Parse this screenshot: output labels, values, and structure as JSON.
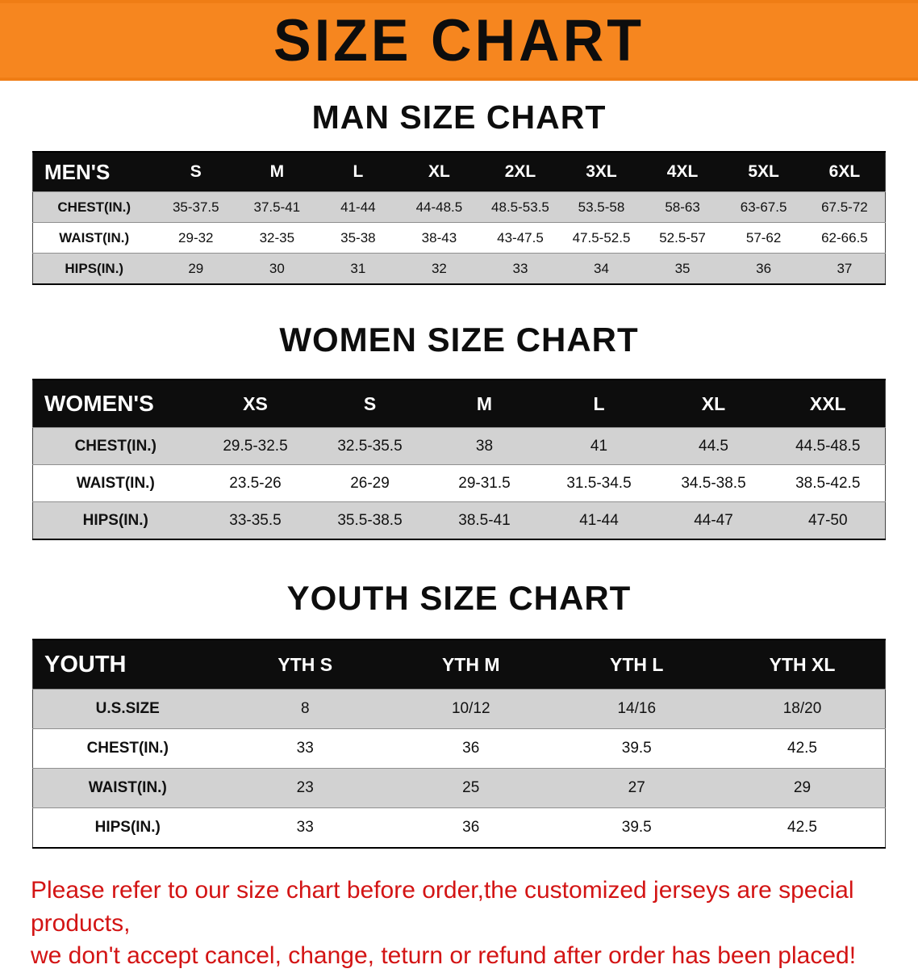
{
  "banner": {
    "title": "SIZE CHART",
    "bg_color": "#f6861f"
  },
  "sections": [
    {
      "title": "MAN SIZE CHART",
      "header_label": "MEN'S",
      "columns": [
        "S",
        "M",
        "L",
        "XL",
        "2XL",
        "3XL",
        "4XL",
        "5XL",
        "6XL"
      ],
      "rows": [
        {
          "label": "CHEST(IN.)",
          "values": [
            "35-37.5",
            "37.5-41",
            "41-44",
            "44-48.5",
            "48.5-53.5",
            "53.5-58",
            "58-63",
            "63-67.5",
            "67.5-72"
          ]
        },
        {
          "label": "WAIST(IN.)",
          "values": [
            "29-32",
            "32-35",
            "35-38",
            "38-43",
            "43-47.5",
            "47.5-52.5",
            "52.5-57",
            "57-62",
            "62-66.5"
          ]
        },
        {
          "label": "HIPS(IN.)",
          "values": [
            "29",
            "30",
            "31",
            "32",
            "33",
            "34",
            "35",
            "36",
            "37"
          ]
        }
      ]
    },
    {
      "title": "WOMEN SIZE CHART",
      "header_label": "WOMEN'S",
      "columns": [
        "XS",
        "S",
        "M",
        "L",
        "XL",
        "XXL"
      ],
      "rows": [
        {
          "label": "CHEST(IN.)",
          "values": [
            "29.5-32.5",
            "32.5-35.5",
            "38",
            "41",
            "44.5",
            "44.5-48.5"
          ]
        },
        {
          "label": "WAIST(IN.)",
          "values": [
            "23.5-26",
            "26-29",
            "29-31.5",
            "31.5-34.5",
            "34.5-38.5",
            "38.5-42.5"
          ]
        },
        {
          "label": "HIPS(IN.)",
          "values": [
            "33-35.5",
            "35.5-38.5",
            "38.5-41",
            "41-44",
            "44-47",
            "47-50"
          ]
        }
      ]
    },
    {
      "title": "YOUTH SIZE CHART",
      "header_label": "YOUTH",
      "columns": [
        "YTH S",
        "YTH M",
        "YTH L",
        "YTH XL"
      ],
      "rows": [
        {
          "label": "U.S.SIZE",
          "values": [
            "8",
            "10/12",
            "14/16",
            "18/20"
          ]
        },
        {
          "label": "CHEST(IN.)",
          "values": [
            "33",
            "36",
            "39.5",
            "42.5"
          ]
        },
        {
          "label": "WAIST(IN.)",
          "values": [
            "23",
            "25",
            "27",
            "29"
          ]
        },
        {
          "label": "HIPS(IN.)",
          "values": [
            "33",
            "36",
            "39.5",
            "42.5"
          ]
        }
      ]
    }
  ],
  "footer": {
    "line1": "Please refer to our size chart before order,the customized jerseys are special products,",
    "line2": "we don't accept cancel, change, teturn or refund after order has been placed!"
  }
}
